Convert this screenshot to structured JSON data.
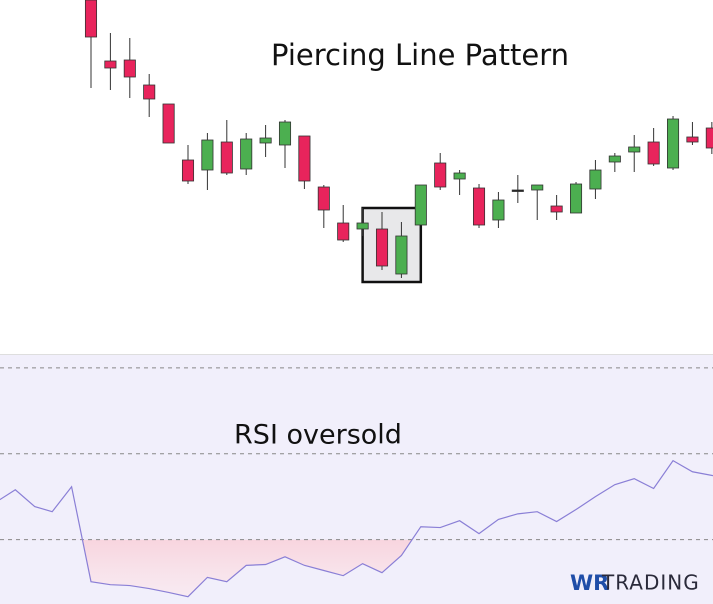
{
  "chart_data": [
    {
      "type": "candlestick",
      "title": "Piercing Line Pattern",
      "xlim": [
        -4.69,
        32.06
      ],
      "ylim": [
        0,
        350
      ],
      "up_color": "#4caf50",
      "down_color": "#e8245c",
      "highlight": [
        15,
        16
      ],
      "open": [
        350,
        289,
        290,
        265,
        246,
        190,
        180,
        208,
        181,
        207,
        205,
        214,
        163,
        127,
        121,
        121,
        76,
        125,
        187,
        171,
        162,
        130,
        160,
        160,
        144,
        137,
        161,
        188,
        198,
        208,
        182,
        213,
        222
      ],
      "high": [
        350,
        317,
        312,
        276,
        246,
        205,
        217,
        230,
        217,
        225,
        230,
        214,
        165,
        145,
        142,
        138,
        128,
        165,
        197,
        180,
        166,
        158,
        175,
        165,
        155,
        168,
        190,
        197,
        215,
        222,
        234,
        228,
        228
      ],
      "low": [
        262,
        260,
        252,
        233,
        207,
        166,
        160,
        175,
        175,
        193,
        182,
        161,
        122,
        108,
        114,
        80,
        72,
        125,
        160,
        155,
        122,
        122,
        147,
        130,
        130,
        137,
        151,
        178,
        178,
        184,
        180,
        205,
        196
      ],
      "close": [
        313,
        282,
        273,
        251,
        207,
        169,
        210,
        177,
        211,
        212,
        228,
        169,
        140,
        110,
        127,
        84,
        114,
        165,
        163,
        177,
        125,
        150,
        160,
        165,
        138,
        166,
        180,
        194,
        203,
        186,
        231,
        208,
        202
      ]
    },
    {
      "type": "line",
      "title": "RSI oversold",
      "xlim": [
        -4.69,
        32.06
      ],
      "ylim": [
        15,
        73
      ],
      "levels": [
        30,
        50,
        70
      ],
      "color": "#8a7fd6",
      "fill_color": "#f7a5b5",
      "x": [
        -4.7,
        -3.9,
        -2.9,
        -2,
        -1,
        0,
        1,
        2,
        3,
        4,
        5,
        6,
        7,
        8,
        9,
        10,
        11,
        12,
        13,
        14,
        15,
        16,
        17,
        18,
        19,
        20,
        21,
        22,
        23,
        24,
        25,
        26,
        27,
        28,
        29,
        30,
        31,
        32.06
      ],
      "values": [
        39.3,
        41.6,
        37.7,
        36.5,
        42.3,
        20.2,
        19.5,
        19.3,
        18.6,
        17.7,
        16.7,
        21.2,
        20.2,
        24.0,
        24.2,
        26.0,
        24.0,
        22.8,
        21.6,
        24.4,
        22.3,
        26.3,
        33.0,
        32.8,
        34.4,
        31.4,
        34.7,
        36.0,
        36.5,
        34.2,
        37.0,
        40.0,
        42.8,
        44.2,
        41.9,
        48.4,
        45.8,
        44.9
      ]
    }
  ],
  "logo": {
    "part1": "WR",
    "part2": "TRADING"
  }
}
